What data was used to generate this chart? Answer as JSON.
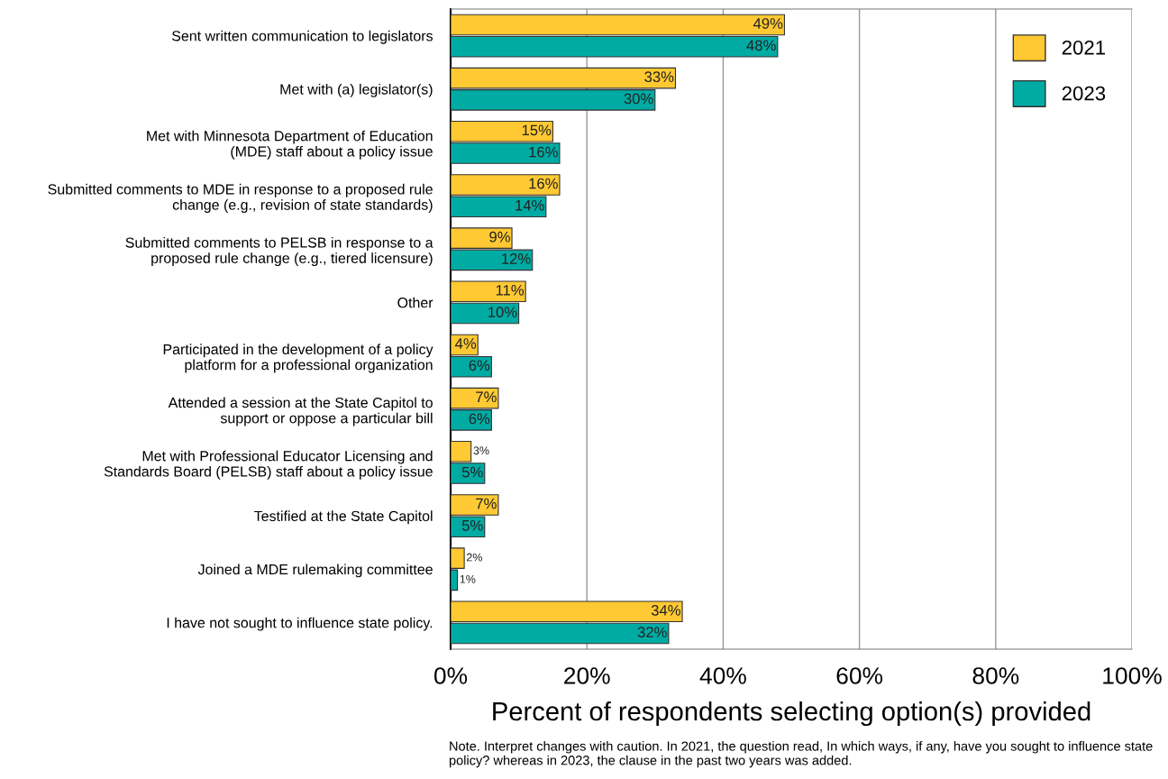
{
  "chart_data": {
    "type": "bar",
    "orientation": "horizontal",
    "categories": [
      "Sent written communication to legislators",
      "Met with (a) legislator(s)",
      "Met with Minnesota Department of Education\n(MDE) staff about a policy issue",
      "Submitted comments to MDE in response to a proposed rule\nchange (e.g., revision of state standards)",
      "Submitted comments to PELSB in response to a\nproposed rule change (e.g., tiered licensure)",
      "Other",
      "Participated in the development of a policy\nplatform for a professional organization",
      "Attended a session at the State Capitol to\nsupport or oppose a particular bill",
      "Met with Professional Educator Licensing and\nStandards Board (PELSB) staff about a policy issue",
      "Testified at the State Capitol",
      "Joined a MDE rulemaking committee",
      "I have not sought to influence state policy."
    ],
    "series": [
      {
        "name": "2021",
        "color": "#ffc933",
        "values": [
          49,
          33,
          15,
          16,
          9,
          11,
          4,
          7,
          3,
          7,
          2,
          34
        ],
        "value_labels": [
          "49%",
          "33%",
          "15%",
          "16%",
          "9%",
          "11%",
          "4%",
          "7%",
          "3%",
          "7%",
          "2%",
          "34%"
        ]
      },
      {
        "name": "2023",
        "color": "#00aba3",
        "values": [
          48,
          30,
          16,
          14,
          12,
          10,
          6,
          6,
          5,
          5,
          1,
          32
        ],
        "value_labels": [
          "48%",
          "30%",
          "16%",
          "14%",
          "12%",
          "10%",
          "6%",
          "6%",
          "5%",
          "5%",
          "1%",
          "32%"
        ]
      }
    ],
    "xlim": [
      0,
      100
    ],
    "xticks": [
      {
        "value": 0,
        "label": "0%"
      },
      {
        "value": 20,
        "label": "20%"
      },
      {
        "value": 40,
        "label": "40%"
      },
      {
        "value": 60,
        "label": "60%"
      },
      {
        "value": 80,
        "label": "80%"
      },
      {
        "value": 100,
        "label": "100%"
      }
    ],
    "xlabel": "Percent of respondents selecting option(s) provided",
    "grid": "x",
    "legend": "top right",
    "annotations": [
      "Note. Interpret changes with caution. In 2021, the question read, In which ways, if any, have you sought to influence state policy? whereas in 2023, the clause in the past two years was added."
    ]
  }
}
